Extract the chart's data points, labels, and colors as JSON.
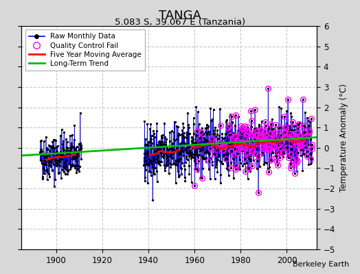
{
  "title": "TANGA",
  "subtitle": "5.083 S, 39.067 E (Tanzania)",
  "ylabel": "Temperature Anomaly (°C)",
  "credit": "Berkeley Earth",
  "xlim": [
    1885,
    2013
  ],
  "ylim": [
    -5,
    6
  ],
  "yticks": [
    -5,
    -4,
    -3,
    -2,
    -1,
    0,
    1,
    2,
    3,
    4,
    5,
    6
  ],
  "xticks": [
    1900,
    1920,
    1940,
    1960,
    1980,
    2000
  ],
  "fig_bg_color": "#d8d8d8",
  "plot_bg_color": "#ffffff",
  "grid_color": "#c8c8c8",
  "raw_color": "#0000cc",
  "qc_fail_color": "#ff00ff",
  "moving_avg_color": "#ff0000",
  "trend_color": "#00bb00",
  "seed": 42,
  "trend_x": [
    1885,
    2013
  ],
  "trend_y": [
    -0.38,
    0.52
  ]
}
